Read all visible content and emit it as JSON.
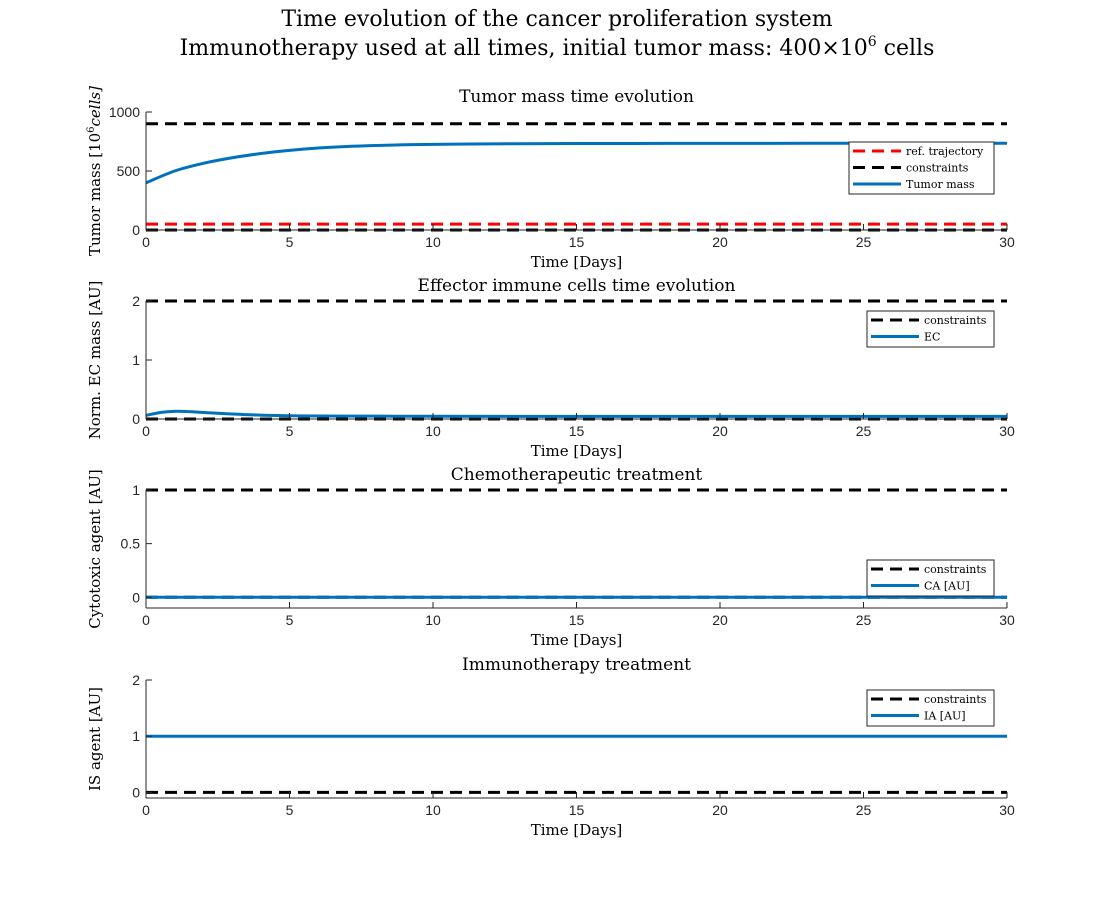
{
  "figure": {
    "title_line1": "Time evolution of the cancer proliferation system",
    "title_line2_prefix": "Immunotherapy used at all times, initial tumor mass: 400×10",
    "title_line2_sup": "6",
    "title_line2_suffix": " cells"
  },
  "chart_data": [
    {
      "type": "line",
      "title": "Tumor mass time evolution",
      "xlabel": "Time [Days]",
      "ylabel_prefix": "Tumor mass [10",
      "ylabel_sup": "6",
      "ylabel_suffix": "cells]",
      "xlim": [
        0,
        30
      ],
      "ylim": [
        0,
        1000
      ],
      "xticks": [
        "0",
        "5",
        "10",
        "15",
        "20",
        "25",
        "30"
      ],
      "xtick_values": [
        0,
        5,
        10,
        15,
        20,
        25,
        30
      ],
      "yticks": [
        "0",
        "500",
        "1000"
      ],
      "ytick_values": [
        0,
        500,
        1000
      ],
      "legend_position": "right",
      "series": [
        {
          "name": "ref. trajectory",
          "style": "dashed",
          "color": "#ff0000",
          "x": [
            0,
            30
          ],
          "y": [
            50,
            50
          ]
        },
        {
          "name": "constraints",
          "style": "dashed",
          "color": "#000000",
          "x": [
            0,
            30
          ],
          "y": [
            900,
            900
          ],
          "group": "constraints"
        },
        {
          "name": "constraints_lower",
          "style": "dashed",
          "color": "#000000",
          "x": [
            0,
            30
          ],
          "y": [
            0,
            0
          ],
          "group": "constraints",
          "legend": false
        },
        {
          "name": "Tumor mass",
          "style": "solid",
          "color": "#0072bd",
          "x": [
            0,
            1,
            2,
            3,
            4,
            5,
            6,
            7,
            8,
            9,
            10,
            12,
            14,
            16,
            18,
            20,
            25,
            30
          ],
          "y": [
            400,
            500,
            565,
            612,
            648,
            675,
            695,
            708,
            716,
            722,
            726,
            730,
            732,
            733,
            734,
            734,
            735,
            735
          ]
        }
      ]
    },
    {
      "type": "line",
      "title": "Effector immune cells time evolution",
      "xlabel": "Time [Days]",
      "ylabel": "Norm. EC mass [AU]",
      "xlim": [
        0,
        30
      ],
      "ylim": [
        0,
        2
      ],
      "xticks": [
        "0",
        "5",
        "10",
        "15",
        "20",
        "25",
        "30"
      ],
      "xtick_values": [
        0,
        5,
        10,
        15,
        20,
        25,
        30
      ],
      "yticks": [
        "0",
        "1",
        "2"
      ],
      "ytick_values": [
        0,
        1,
        2
      ],
      "legend_position": "top-right",
      "series": [
        {
          "name": "constraints",
          "style": "dashed",
          "color": "#000000",
          "x": [
            0,
            30
          ],
          "y": [
            2,
            2
          ],
          "group": "constraints"
        },
        {
          "name": "constraints_lower",
          "style": "dashed",
          "color": "#000000",
          "x": [
            0,
            30
          ],
          "y": [
            0,
            0
          ],
          "group": "constraints",
          "legend": false
        },
        {
          "name": "EC",
          "style": "solid",
          "color": "#0072bd",
          "x": [
            0,
            0.5,
            1,
            1.5,
            2,
            3,
            4,
            5,
            6,
            8,
            10,
            15,
            20,
            25,
            30
          ],
          "y": [
            0.06,
            0.11,
            0.13,
            0.125,
            0.11,
            0.085,
            0.065,
            0.055,
            0.05,
            0.048,
            0.046,
            0.045,
            0.045,
            0.045,
            0.045
          ]
        }
      ]
    },
    {
      "type": "line",
      "title": "Chemotherapeutic treatment",
      "xlabel": "Time [Days]",
      "ylabel": "Cytotoxic agent [AU]",
      "xlim": [
        0,
        30
      ],
      "ylim": [
        -0.1,
        1
      ],
      "xticks": [
        "0",
        "5",
        "10",
        "15",
        "20",
        "25",
        "30"
      ],
      "xtick_values": [
        0,
        5,
        10,
        15,
        20,
        25,
        30
      ],
      "yticks": [
        "0",
        "0.5",
        "1"
      ],
      "ytick_values": [
        0,
        0.5,
        1
      ],
      "legend_position": "bottom-right",
      "series": [
        {
          "name": "constraints",
          "style": "dashed",
          "color": "#000000",
          "x": [
            0,
            30
          ],
          "y": [
            1,
            1
          ],
          "group": "constraints"
        },
        {
          "name": "constraints_lower",
          "style": "dashed",
          "color": "#000000",
          "x": [
            0,
            30
          ],
          "y": [
            0,
            0
          ],
          "group": "constraints",
          "legend": false
        },
        {
          "name": "CA [AU]",
          "style": "solid",
          "color": "#0072bd",
          "x": [
            0,
            30
          ],
          "y": [
            0,
            0
          ]
        }
      ]
    },
    {
      "type": "line",
      "title": "Immunotherapy treatment",
      "xlabel": "Time [Days]",
      "ylabel": "IS agent [AU]",
      "xlim": [
        0,
        30
      ],
      "ylim": [
        -0.1,
        2
      ],
      "xticks": [
        "0",
        "5",
        "10",
        "15",
        "20",
        "25",
        "30"
      ],
      "xtick_values": [
        0,
        5,
        10,
        15,
        20,
        25,
        30
      ],
      "yticks": [
        "0",
        "1",
        "2"
      ],
      "ytick_values": [
        0,
        1,
        2
      ],
      "legend_position": "top-right",
      "series": [
        {
          "name": "constraints",
          "style": "dashed",
          "color": "#000000",
          "x": [
            0,
            30
          ],
          "y": [
            0,
            0
          ],
          "group": "constraints"
        },
        {
          "name": "IA [AU]",
          "style": "solid",
          "color": "#0072bd",
          "x": [
            0,
            30
          ],
          "y": [
            1,
            1
          ]
        }
      ]
    }
  ]
}
